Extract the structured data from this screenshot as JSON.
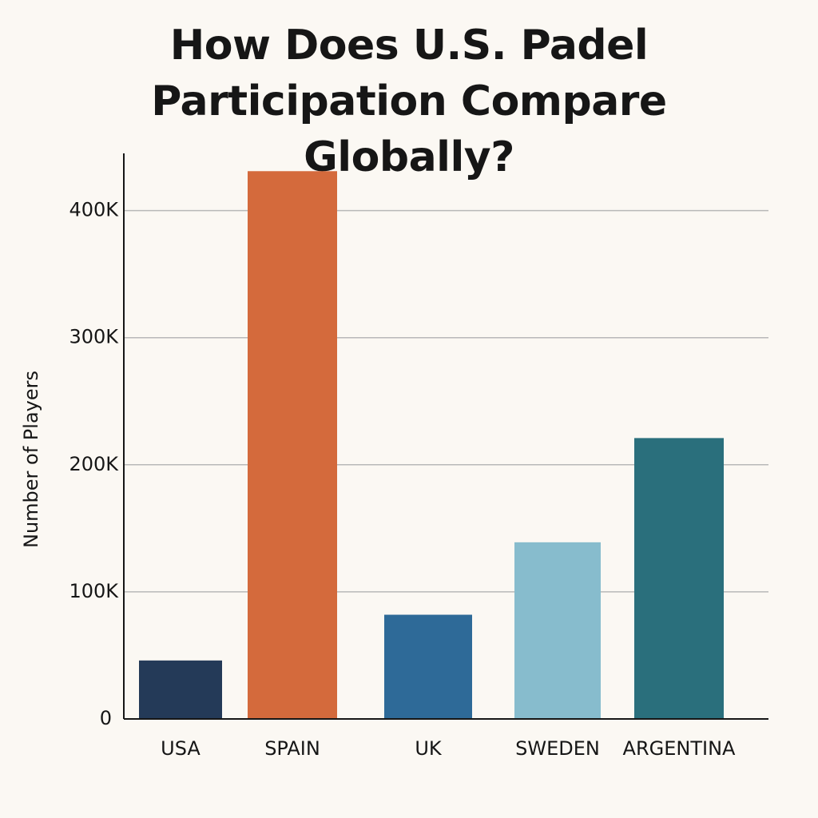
{
  "chart_data": {
    "type": "bar",
    "title": "How Does U.S. Padel Participation Compare Globally?",
    "y_label": "Number of Players",
    "categories": [
      "USA",
      "SPAIN",
      "UK",
      "SWEDEN",
      "ARGENTINA"
    ],
    "values": [
      46000,
      431000,
      82000,
      139000,
      221000
    ],
    "colors": [
      "#243a58",
      "#d46a3c",
      "#2e6a98",
      "#87bccd",
      "#2a6f7c"
    ],
    "ylim": [
      0,
      445000
    ],
    "yticks": [
      0,
      {
        "value": 100000,
        "label": "100K"
      },
      {
        "value": 200000,
        "label": "200K"
      },
      {
        "value": 300000,
        "label": "300K"
      },
      {
        "value": 400000,
        "label": "400K"
      }
    ],
    "grid": true
  }
}
